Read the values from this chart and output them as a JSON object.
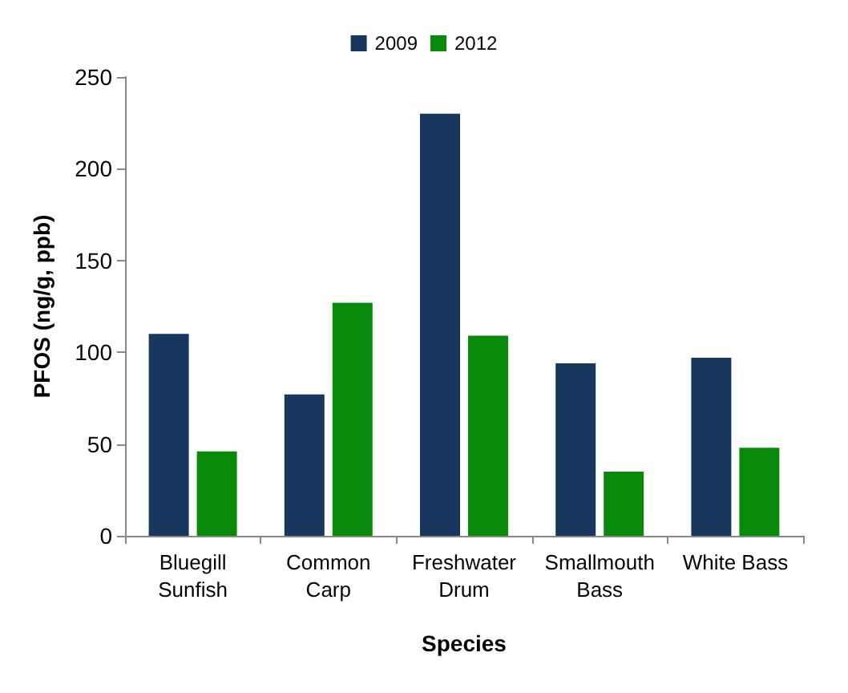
{
  "chart_data": {
    "type": "bar",
    "xlabel": "Species",
    "ylabel": "PFOS (ng/g, ppb)",
    "categories": [
      "Bluegill\nSunfish",
      "Common\nCarp",
      "Freshwater\nDrum",
      "Smallmouth\nBass",
      "White Bass"
    ],
    "series": [
      {
        "name": "2009",
        "color": "#17375e",
        "values": [
          110,
          77,
          230,
          94,
          97
        ]
      },
      {
        "name": "2012",
        "color": "#0a8a0a",
        "values": [
          46,
          127,
          109,
          35,
          48
        ]
      }
    ],
    "ylim": [
      0,
      250
    ],
    "yticks": [
      0,
      50,
      100,
      150,
      200,
      250
    ],
    "grid": false,
    "legend": "top"
  }
}
